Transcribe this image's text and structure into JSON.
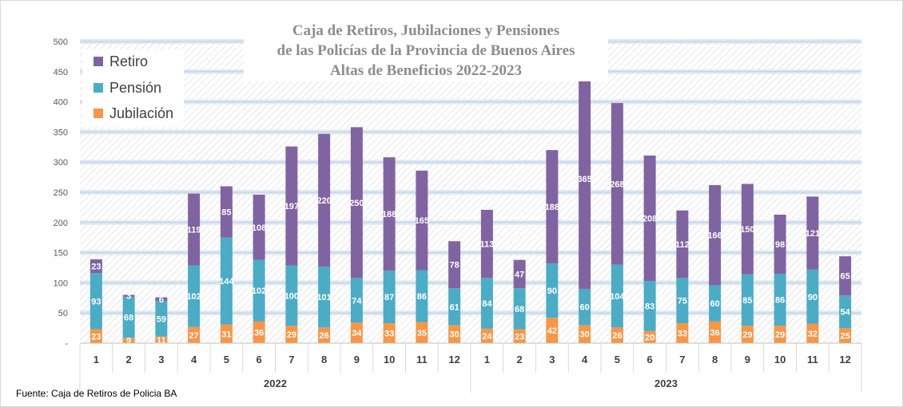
{
  "title": {
    "line1": "Caja de Retiros, Jubilaciones y Pensiones",
    "line2": "de las Policías de la Provincia de Buenos Aires",
    "line3": "Altas de Beneficios 2022-2023"
  },
  "source": "Fuente: Caja de Retiros de Policia BA",
  "colors": {
    "retiro": "#8064a2",
    "pension": "#4bacc6",
    "jubilacion": "#f79646",
    "grid": "#dce6f2"
  },
  "chart_data": {
    "type": "bar",
    "stacked": true,
    "title": "Caja de Retiros, Jubilaciones y Pensiones de las Policías de la Provincia de Buenos Aires Altas de Beneficios 2022-2023",
    "ylim": [
      0,
      500
    ],
    "y_ticks": [
      "-",
      "50",
      "100",
      "150",
      "200",
      "250",
      "300",
      "350",
      "400",
      "450",
      "500"
    ],
    "legend_position": "top-left",
    "groups": [
      {
        "label": "2022",
        "categories": [
          "1",
          "2",
          "3",
          "4",
          "5",
          "6",
          "7",
          "8",
          "9",
          "10",
          "11",
          "12"
        ]
      },
      {
        "label": "2023",
        "categories": [
          "1",
          "2",
          "3",
          "4",
          "5",
          "6",
          "7",
          "8",
          "9",
          "10",
          "11",
          "12"
        ]
      }
    ],
    "series": [
      {
        "name": "Jubilación",
        "values": [
          23,
          9,
          11,
          27,
          31,
          36,
          29,
          26,
          34,
          33,
          35,
          30,
          24,
          23,
          42,
          30,
          26,
          20,
          33,
          36,
          29,
          29,
          32,
          25
        ]
      },
      {
        "name": "Pensión",
        "values": [
          93,
          68,
          59,
          102,
          144,
          102,
          100,
          101,
          74,
          87,
          86,
          61,
          84,
          68,
          90,
          60,
          104,
          83,
          75,
          60,
          85,
          86,
          90,
          54
        ]
      },
      {
        "name": "Retiro",
        "values": [
          23,
          3,
          6,
          119,
          85,
          108,
          197,
          220,
          250,
          188,
          165,
          78,
          113,
          47,
          188,
          365,
          268,
          208,
          112,
          166,
          150,
          98,
          121,
          65
        ]
      }
    ]
  }
}
